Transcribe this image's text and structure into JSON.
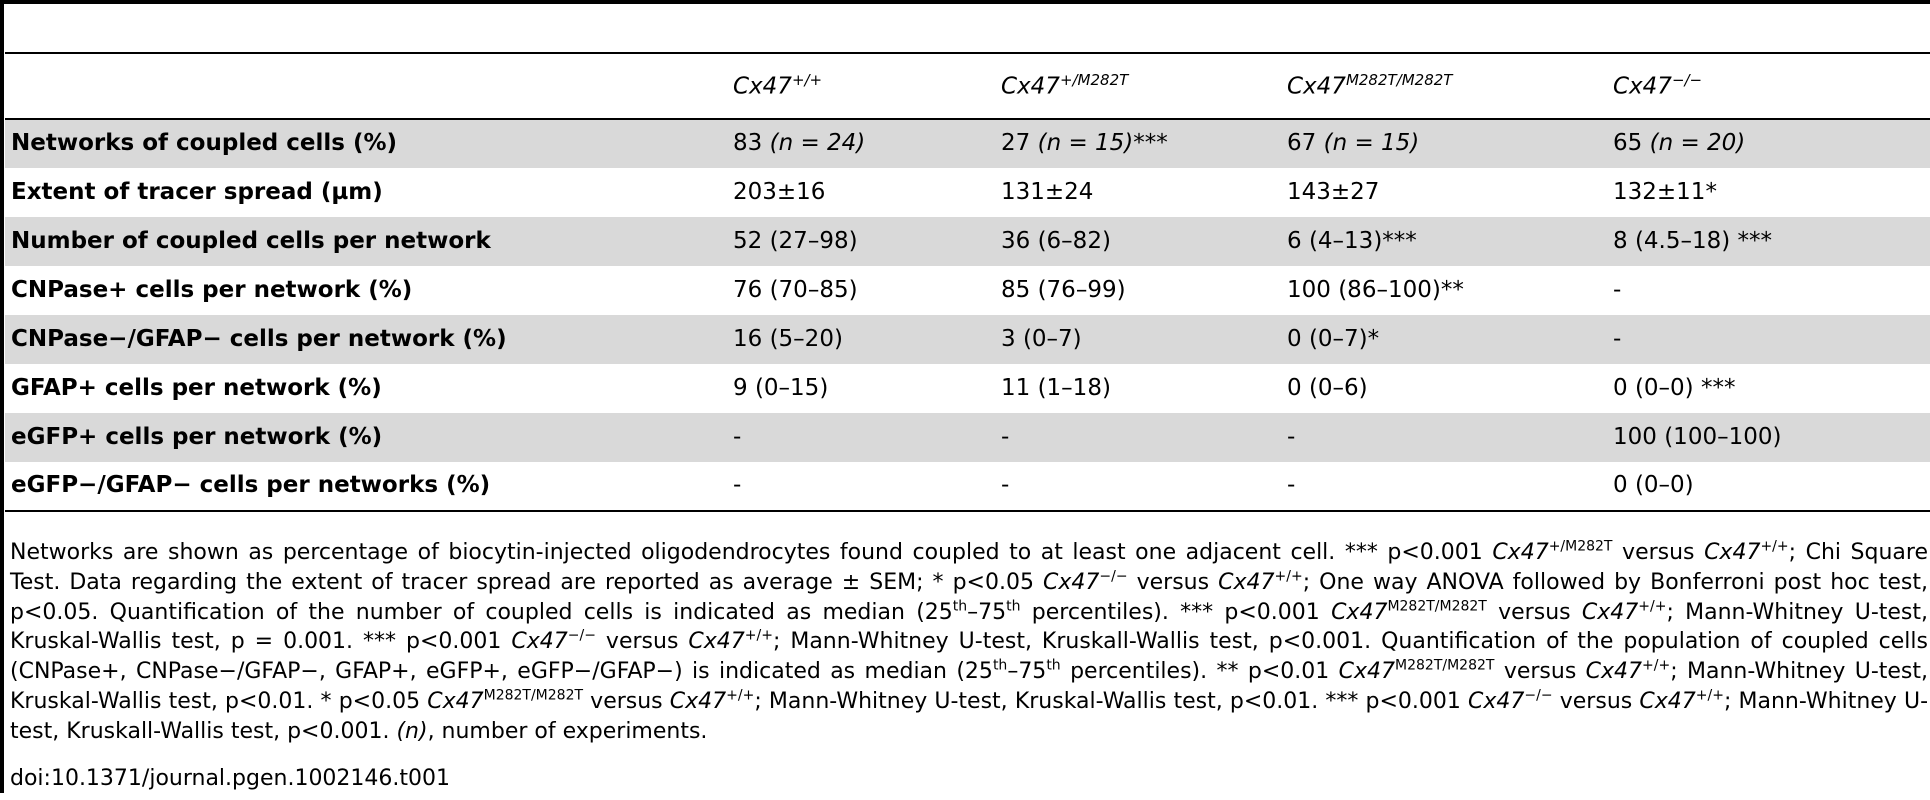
{
  "table": {
    "columns": [
      "",
      {
        "base": "Cx47",
        "sup": "+/+"
      },
      {
        "base": "Cx47",
        "sup": "+/M282T"
      },
      {
        "base": "Cx47",
        "sup": "M282T/M282T"
      },
      {
        "base": "Cx47",
        "sup": "−/−"
      }
    ],
    "rows": [
      {
        "label": "Networks of coupled cells (%)",
        "cells": [
          {
            "v": "83",
            "n": "(n = 24)",
            "s": ""
          },
          {
            "v": "27",
            "n": "(n = 15)",
            "s": "***"
          },
          {
            "v": "67",
            "n": "(n = 15)",
            "s": ""
          },
          {
            "v": "65",
            "n": "(n = 20)",
            "s": ""
          }
        ]
      },
      {
        "label": "Extent of tracer spread (µm)",
        "cells": [
          {
            "v": "203±16"
          },
          {
            "v": "131±24"
          },
          {
            "v": "143±27"
          },
          {
            "v": "132±11*"
          }
        ]
      },
      {
        "label": "Number of coupled cells per network",
        "cells": [
          {
            "v": "52 (27–98)"
          },
          {
            "v": "36 (6–82)"
          },
          {
            "v": "6 (4–13)***"
          },
          {
            "v": "8 (4.5–18) ***"
          }
        ]
      },
      {
        "label": "CNPase+ cells per network (%)",
        "cells": [
          {
            "v": "76 (70–85)"
          },
          {
            "v": "85 (76–99)"
          },
          {
            "v": "100 (86–100)**"
          },
          {
            "v": "-"
          }
        ]
      },
      {
        "label": "CNPase−/GFAP− cells per network (%)",
        "cells": [
          {
            "v": "16 (5–20)"
          },
          {
            "v": "3 (0–7)"
          },
          {
            "v": "0 (0–7)*"
          },
          {
            "v": "-"
          }
        ]
      },
      {
        "label": "GFAP+ cells per network (%)",
        "cells": [
          {
            "v": "9 (0–15)"
          },
          {
            "v": "11 (1–18)"
          },
          {
            "v": "0 (0–6)"
          },
          {
            "v": "0 (0–0) ***"
          }
        ]
      },
      {
        "label": "eGFP+ cells per network (%)",
        "cells": [
          {
            "v": "-"
          },
          {
            "v": "-"
          },
          {
            "v": "-"
          },
          {
            "v": "100 (100–100)"
          }
        ]
      },
      {
        "label": "eGFP−/GFAP− cells per networks (%)",
        "cells": [
          {
            "v": "-"
          },
          {
            "v": "-"
          },
          {
            "v": "-"
          },
          {
            "v": "0 (0–0)"
          }
        ]
      }
    ]
  },
  "footnote": {
    "p1": "Networks are shown as percentage of biocytin-injected oligodendrocytes found coupled to at least one adjacent cell. *** p<0.001 ",
    "p2": " versus ",
    "p3": "; Chi Square Test. Data regarding the extent of tracer spread are reported as average ± SEM; * p<0.05 ",
    "p4": "; One way ANOVA followed by Bonferroni post hoc test, p<0.05. Quantification of the number of coupled cells is indicated as median (25",
    "th": "th",
    "p5": "–75",
    "p6": " percentiles). *** p<0.001 ",
    "p7": "; Mann-Whitney U-test, Kruskal-Wallis test, p = 0.001. *** p<0.001 ",
    "p8": "; Mann-Whitney U-test, Kruskall-Wallis test, p<0.001. Quantification of the population of coupled cells (CNPase+, CNPase−/GFAP−, GFAP+, eGFP+, eGFP−/GFAP−) is indicated as median (25",
    "p9": " percentiles). ** p<0.01 ",
    "p10": "; Mann-Whitney U-test, Kruskal-Wallis test, p<0.01. * p<0.05 ",
    "p11": "; Mann-Whitney U-test, Kruskal-Wallis test, p<0.01. *** p<0.001 ",
    "p12": "; Mann-Whitney U-test, Kruskall-Wallis test, p<0.001. ",
    "n_label": "(n)",
    "p13": ", number of experiments.",
    "gene": "Cx47",
    "wt": "+/+",
    "het": "+/M282T",
    "hom": "M282T/M282T",
    "ko": "−/−"
  },
  "doi": "doi:10.1371/journal.pgen.1002146.t001"
}
